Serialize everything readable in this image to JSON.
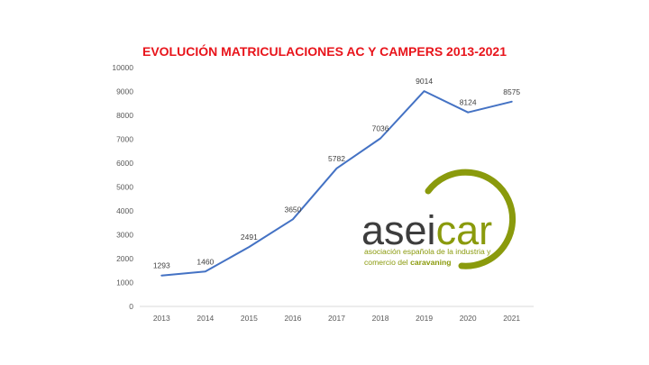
{
  "chart_data": {
    "type": "line",
    "title": "EVOLUCIÓN MATRICULACIONES AC Y CAMPERS 2013-2021",
    "categories": [
      "2013",
      "2014",
      "2015",
      "2016",
      "2017",
      "2018",
      "2019",
      "2020",
      "2021"
    ],
    "values": [
      1293,
      1460,
      2491,
      3650,
      5782,
      7036,
      9014,
      8124,
      8575
    ],
    "data_labels": [
      "1293",
      "1460",
      "2491",
      "3650",
      "5782",
      "7036",
      "9014",
      "8124",
      "8575"
    ],
    "yticks": [
      "0",
      "1000",
      "2000",
      "3000",
      "4000",
      "5000",
      "6000",
      "7000",
      "8000",
      "9000",
      "10000"
    ],
    "ylim": [
      0,
      10000
    ],
    "xlabel": "",
    "ylabel": "",
    "grid": false,
    "legend": "none",
    "line_color": "#4472c4"
  },
  "logo": {
    "word_part1": "asei",
    "word_part2": "car",
    "subtitle_line1": "asociación española de la industria y",
    "subtitle_line2_prefix": "comercio del ",
    "subtitle_line2_bold": "caravaning",
    "dark_color": "#3d3d3d",
    "accent_color": "#8a9a0c"
  }
}
